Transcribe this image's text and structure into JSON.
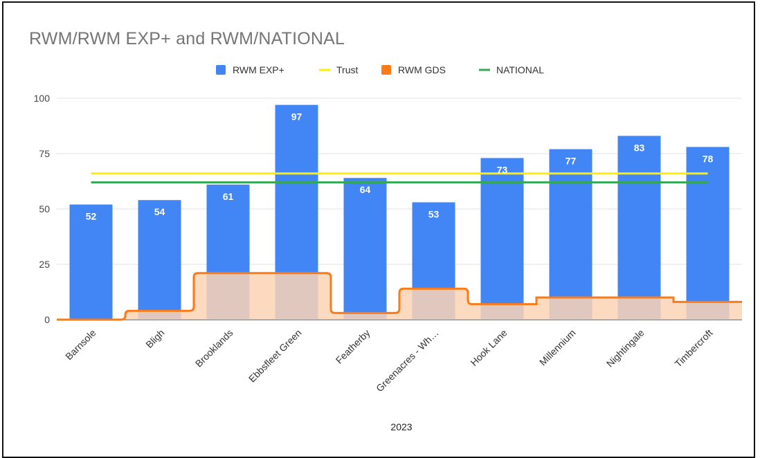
{
  "chart_data": {
    "type": "bar",
    "title": "RWM/RWM EXP+ and RWM/NATIONAL",
    "xlabel": "2023",
    "ylabel": "",
    "ylim": [
      0,
      100
    ],
    "yticks": [
      0,
      25,
      50,
      75,
      100
    ],
    "grid": true,
    "legend_position": "top",
    "categories": [
      "Barnsole",
      "Bligh",
      "Brooklands",
      "Ebbsfleet Green",
      "Featherby",
      "Greenacres - Wh…",
      "Hook Lane",
      "Millennium",
      "Nightingale",
      "Timbercroft"
    ],
    "series": [
      {
        "name": "RWM EXP+",
        "kind": "bar",
        "color": "#4285f4",
        "values": [
          52,
          54,
          61,
          97,
          64,
          53,
          73,
          77,
          83,
          78
        ]
      },
      {
        "name": "Trust",
        "kind": "line",
        "color": "#ffee00",
        "values": [
          66,
          66,
          66,
          66,
          66,
          66,
          66,
          66,
          66,
          66
        ]
      },
      {
        "name": "RWM GDS",
        "kind": "stepped-area",
        "color": "#fa7b17",
        "fill": "#fbd3b4",
        "values": [
          0,
          4,
          21,
          21,
          3,
          14,
          7,
          10,
          10,
          8
        ]
      },
      {
        "name": "NATIONAL",
        "kind": "line",
        "color": "#34a853",
        "values": [
          62,
          62,
          62,
          62,
          62,
          62,
          62,
          62,
          62,
          62
        ]
      }
    ]
  }
}
